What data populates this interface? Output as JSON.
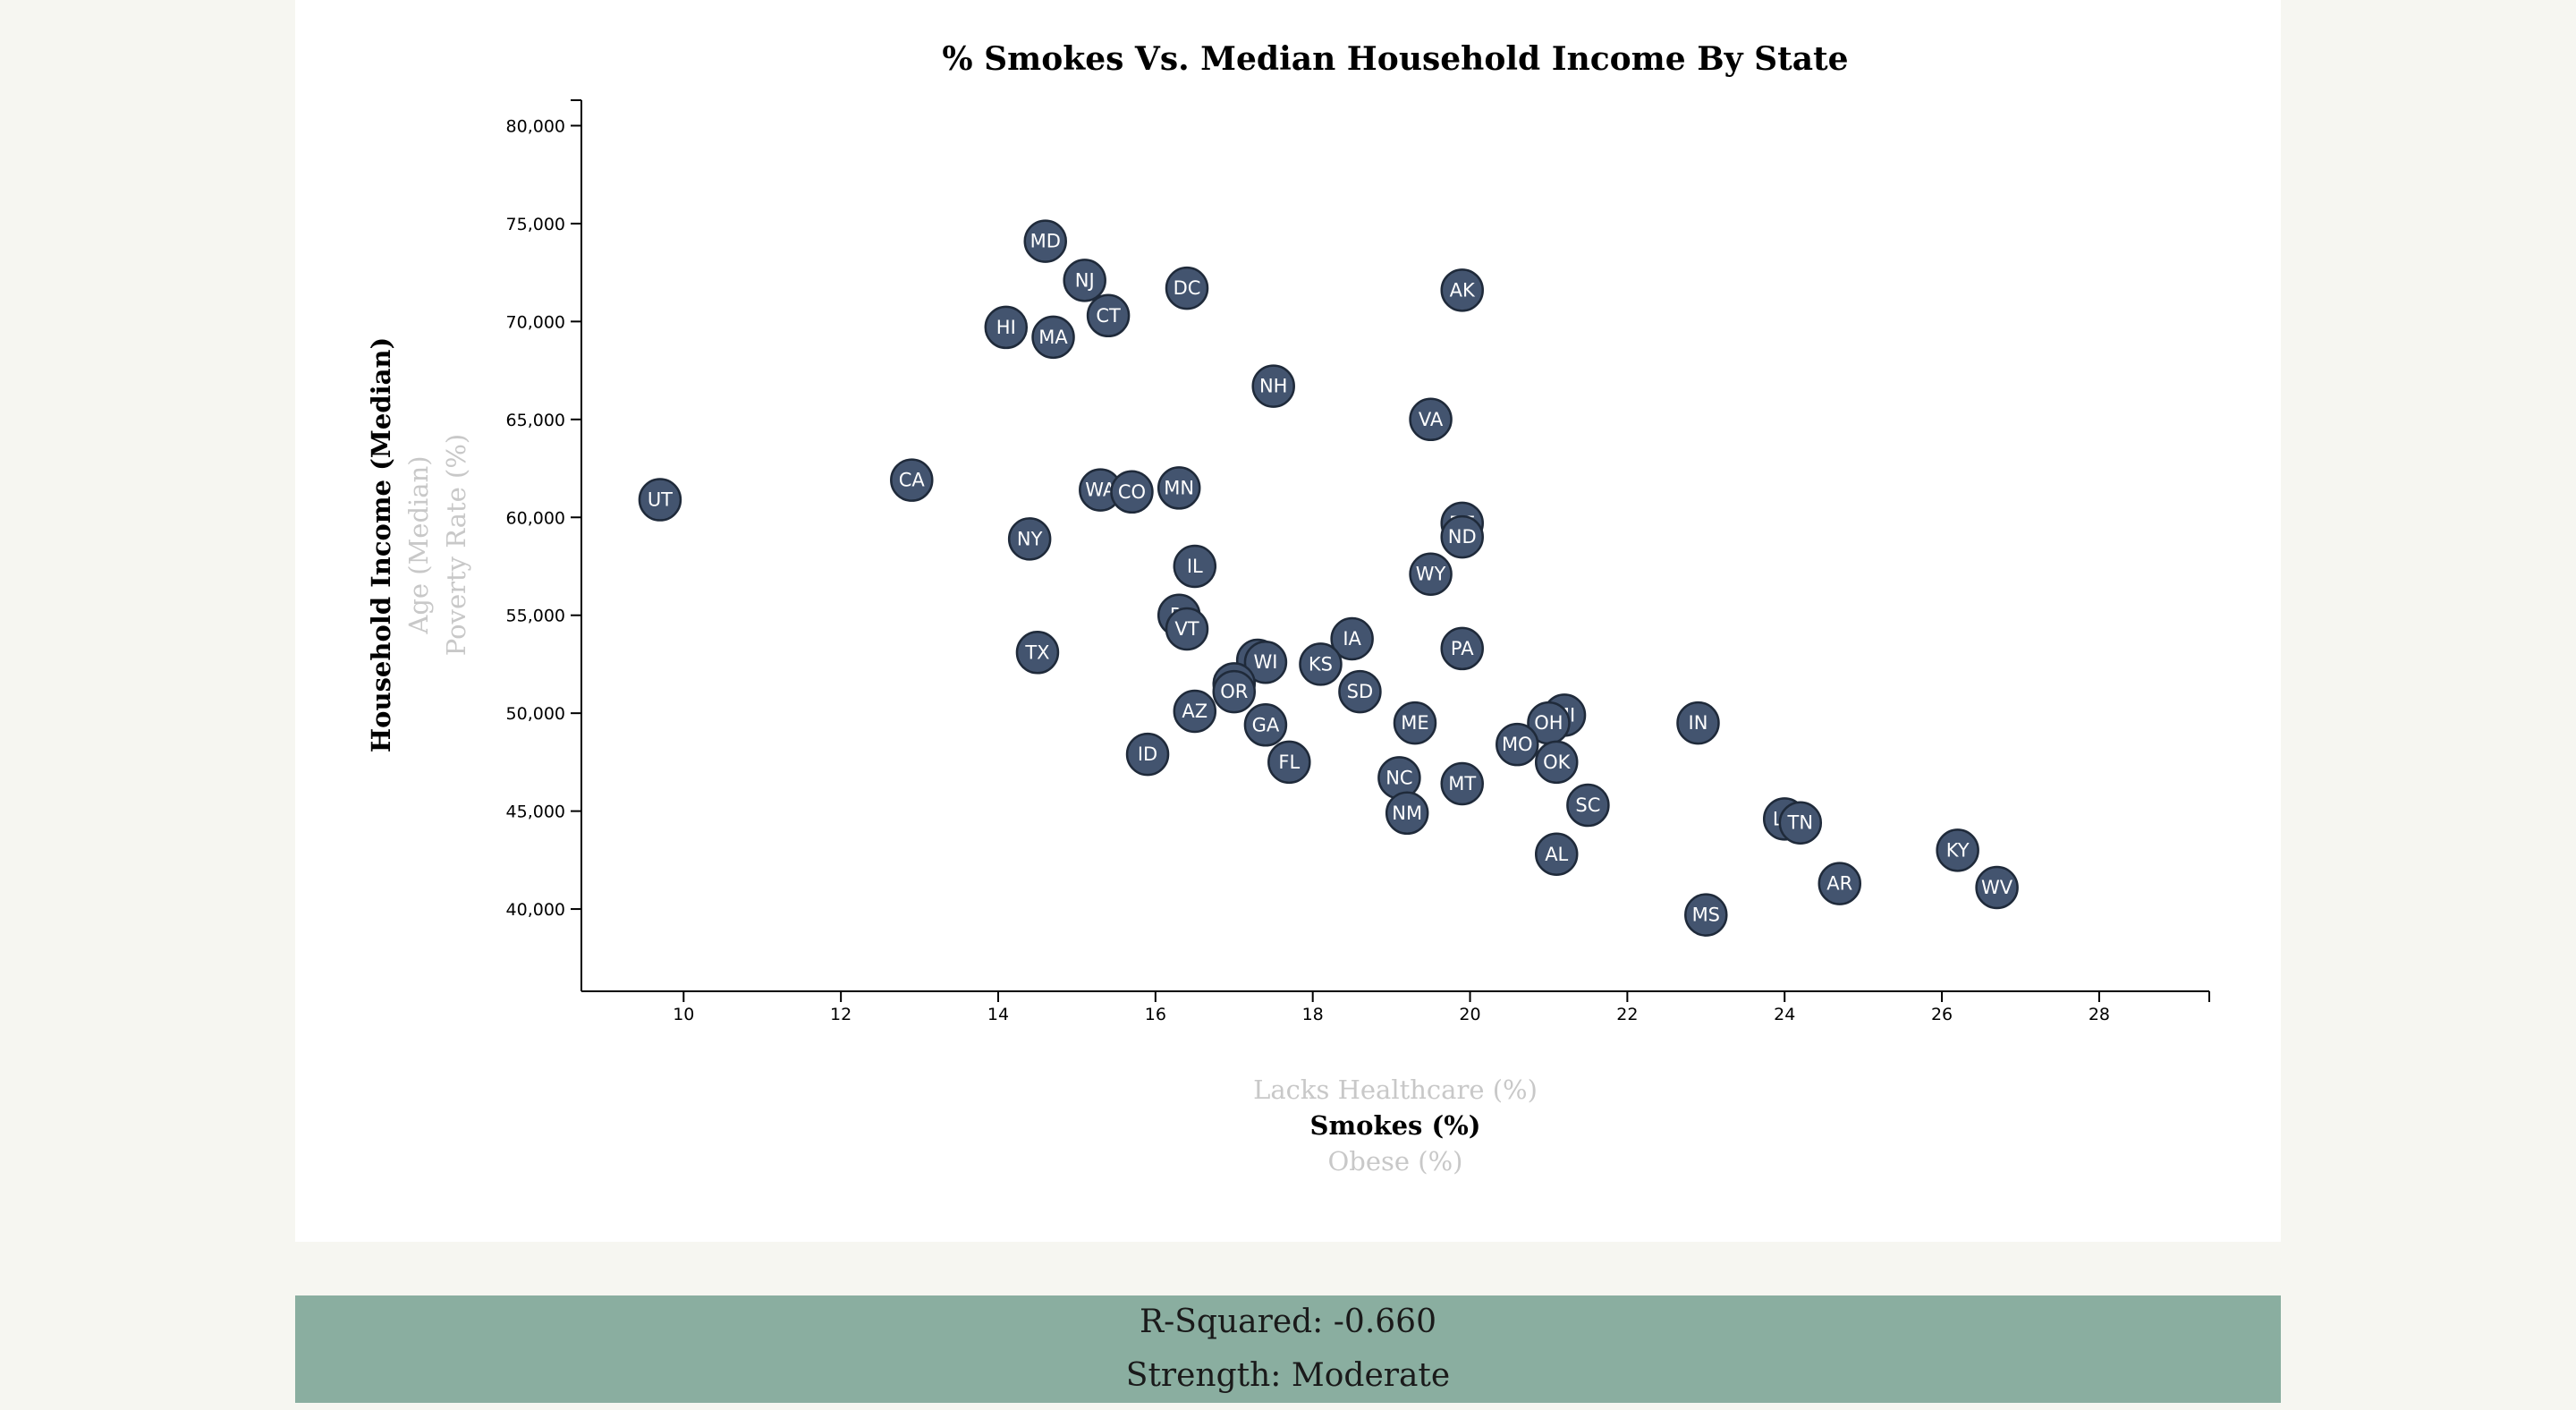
{
  "stats": {
    "r_squared_text": "R-Squared: -0.660",
    "strength_text": "Strength: Moderate"
  },
  "axis_options": {
    "y": [
      {
        "label": "Household Income (Median)",
        "active": true
      },
      {
        "label": "Age (Median)",
        "active": false
      },
      {
        "label": "Poverty Rate (%)",
        "active": false
      }
    ],
    "x": [
      {
        "label": "Lacks Healthcare (%)",
        "active": false
      },
      {
        "label": "Smokes (%)",
        "active": true
      },
      {
        "label": "Obese (%)",
        "active": false
      }
    ]
  },
  "colors": {
    "circle_fill": "#43546f",
    "stats_background": "#8aaea0",
    "page_background": "#f6f6f1"
  },
  "chart_data": {
    "type": "scatter",
    "title": "% Smokes Vs. Median Household Income By State",
    "xlabel": "Smokes (%)",
    "ylabel": "Household Income (Median)",
    "xlim": [
      8.7,
      29.4
    ],
    "ylim": [
      35800,
      81300
    ],
    "x_ticks": [
      10,
      12,
      14,
      16,
      18,
      20,
      22,
      24,
      26,
      28
    ],
    "y_ticks": [
      40000,
      45000,
      50000,
      55000,
      60000,
      65000,
      70000,
      75000,
      80000
    ],
    "x_tick_labels": [
      "10",
      "12",
      "14",
      "16",
      "18",
      "20",
      "22",
      "24",
      "26",
      "28"
    ],
    "y_tick_labels": [
      "40,000",
      "45,000",
      "50,000",
      "55,000",
      "60,000",
      "65,000",
      "70,000",
      "75,000",
      "80,000"
    ],
    "grid": false,
    "points": [
      {
        "label": "MD",
        "x": 14.6,
        "y": 74100
      },
      {
        "label": "NJ",
        "x": 15.1,
        "y": 72100
      },
      {
        "label": "DC",
        "x": 16.4,
        "y": 71700
      },
      {
        "label": "AK",
        "x": 19.9,
        "y": 71600
      },
      {
        "label": "CT",
        "x": 15.4,
        "y": 70300
      },
      {
        "label": "HI",
        "x": 14.1,
        "y": 69700
      },
      {
        "label": "MA",
        "x": 14.7,
        "y": 69200
      },
      {
        "label": "NH",
        "x": 17.5,
        "y": 66700
      },
      {
        "label": "VA",
        "x": 19.5,
        "y": 65000
      },
      {
        "label": "UT",
        "x": 9.7,
        "y": 60900
      },
      {
        "label": "CA",
        "x": 12.9,
        "y": 61900
      },
      {
        "label": "WA",
        "x": 15.3,
        "y": 61400
      },
      {
        "label": "CO",
        "x": 15.7,
        "y": 61300
      },
      {
        "label": "MN",
        "x": 16.3,
        "y": 61500
      },
      {
        "label": "DE",
        "x": 19.9,
        "y": 59700
      },
      {
        "label": "ND",
        "x": 19.9,
        "y": 59000
      },
      {
        "label": "NY",
        "x": 14.4,
        "y": 58900
      },
      {
        "label": "IL",
        "x": 16.5,
        "y": 57500
      },
      {
        "label": "WY",
        "x": 19.5,
        "y": 57100
      },
      {
        "label": "RI",
        "x": 16.3,
        "y": 55000
      },
      {
        "label": "VT",
        "x": 16.4,
        "y": 54300
      },
      {
        "label": "IA",
        "x": 18.5,
        "y": 53800
      },
      {
        "label": "PA",
        "x": 19.9,
        "y": 53300
      },
      {
        "label": "TX",
        "x": 14.5,
        "y": 53100
      },
      {
        "label": "NE",
        "x": 17.3,
        "y": 52700
      },
      {
        "label": "WI",
        "x": 17.4,
        "y": 52600
      },
      {
        "label": "KS",
        "x": 18.1,
        "y": 52500
      },
      {
        "label": "NV",
        "x": 17.0,
        "y": 51500
      },
      {
        "label": "SD",
        "x": 18.6,
        "y": 51100
      },
      {
        "label": "OR",
        "x": 17.0,
        "y": 51100
      },
      {
        "label": "AZ",
        "x": 16.5,
        "y": 50100
      },
      {
        "label": "MI",
        "x": 21.2,
        "y": 49900
      },
      {
        "label": "IN",
        "x": 22.9,
        "y": 49500
      },
      {
        "label": "OH",
        "x": 21.0,
        "y": 49500
      },
      {
        "label": "ME",
        "x": 19.3,
        "y": 49500
      },
      {
        "label": "GA",
        "x": 17.4,
        "y": 49400
      },
      {
        "label": "MO",
        "x": 20.6,
        "y": 48400
      },
      {
        "label": "ID",
        "x": 15.9,
        "y": 47900
      },
      {
        "label": "OK",
        "x": 21.1,
        "y": 47500
      },
      {
        "label": "FL",
        "x": 17.7,
        "y": 47500
      },
      {
        "label": "NC",
        "x": 19.1,
        "y": 46700
      },
      {
        "label": "MT",
        "x": 19.9,
        "y": 46400
      },
      {
        "label": "SC",
        "x": 21.5,
        "y": 45300
      },
      {
        "label": "NM",
        "x": 19.2,
        "y": 44900
      },
      {
        "label": "LA",
        "x": 24.0,
        "y": 44600
      },
      {
        "label": "TN",
        "x": 24.2,
        "y": 44400
      },
      {
        "label": "KY",
        "x": 26.2,
        "y": 43000
      },
      {
        "label": "AL",
        "x": 21.1,
        "y": 42800
      },
      {
        "label": "AR",
        "x": 24.7,
        "y": 41300
      },
      {
        "label": "WV",
        "x": 26.7,
        "y": 41100
      },
      {
        "label": "MS",
        "x": 23.0,
        "y": 39700
      }
    ]
  }
}
